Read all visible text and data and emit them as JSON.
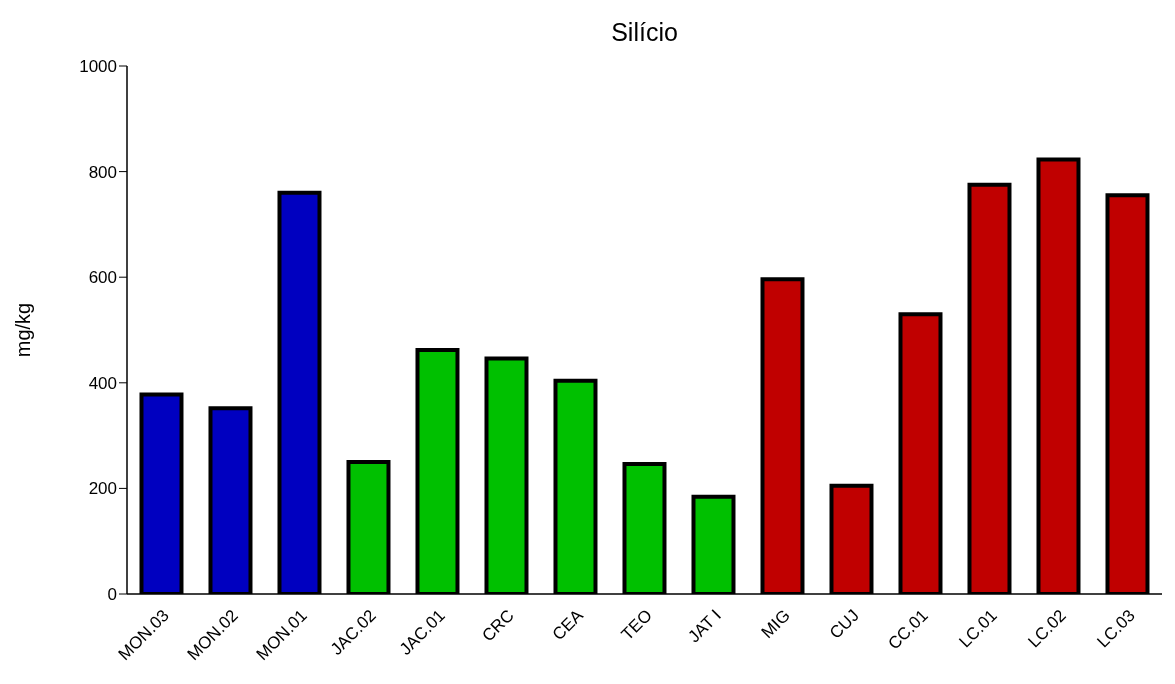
{
  "chart_data": {
    "type": "bar",
    "title": "Silício",
    "ylabel": "mg/kg",
    "categories": [
      "MON.03",
      "MON.02",
      "MON.01",
      "JAC.02",
      "JAC.01",
      "CRC",
      "CEA",
      "TEO",
      "JAT I",
      "MIG",
      "CUJ",
      "CC.01",
      "LC.01",
      "LC.02",
      "LC.03"
    ],
    "values": [
      378,
      352,
      760,
      250,
      462,
      446,
      404,
      246,
      184,
      596,
      205,
      530,
      775,
      823,
      755
    ],
    "colors": [
      "#0000c0",
      "#0000c0",
      "#0000c0",
      "#00c000",
      "#00c000",
      "#00c000",
      "#00c000",
      "#00c000",
      "#00c000",
      "#c00000",
      "#c00000",
      "#c00000",
      "#c00000",
      "#c00000",
      "#c00000"
    ],
    "ylim": [
      0,
      1000
    ],
    "yticks": [
      0,
      200,
      400,
      600,
      800,
      1000
    ],
    "grid": false,
    "legend": false
  }
}
